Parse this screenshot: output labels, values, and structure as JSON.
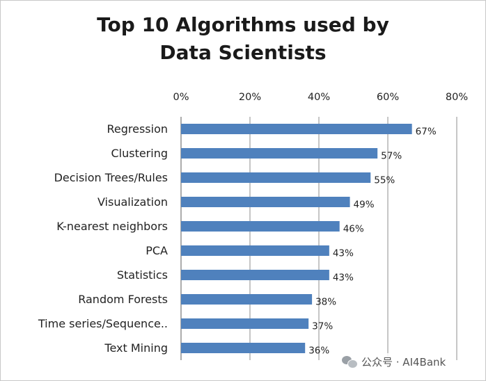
{
  "chart_data": {
    "type": "bar",
    "orientation": "horizontal",
    "title_lines": [
      "Top 10 Algorithms used by",
      "Data Scientists"
    ],
    "categories": [
      "Regression",
      "Clustering",
      "Decision Trees/Rules",
      "Visualization",
      "K-nearest neighbors",
      "PCA",
      "Statistics",
      "Random Forests",
      "Time series/Sequence..",
      "Text Mining"
    ],
    "values": [
      67,
      57,
      55,
      49,
      46,
      43,
      43,
      38,
      37,
      36
    ],
    "value_labels": [
      "67%",
      "57%",
      "55%",
      "49%",
      "46%",
      "43%",
      "43%",
      "38%",
      "37%",
      "36%"
    ],
    "xlim": [
      0,
      80
    ],
    "x_ticks": [
      0,
      20,
      40,
      60,
      80
    ],
    "x_tick_labels": [
      "0%",
      "20%",
      "40%",
      "60%",
      "80%"
    ],
    "x_axis_position": "top",
    "grid": true,
    "legend": "none",
    "bar_color": "#4f81bd"
  },
  "watermark": {
    "text": "公众号 · AI4Bank",
    "icon": "wechat-icon"
  }
}
